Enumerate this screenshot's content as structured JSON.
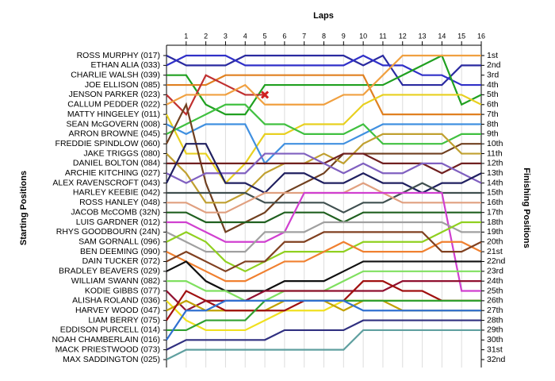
{
  "chart_data": {
    "type": "line",
    "title": "Laps",
    "y_label": "Starting Positions",
    "y2_label": "Finishing Positions",
    "x": [
      0,
      1,
      2,
      3,
      4,
      5,
      6,
      7,
      8,
      9,
      10,
      11,
      12,
      13,
      14,
      15,
      16
    ],
    "xlim": [
      0,
      16
    ],
    "xticks": [
      1,
      2,
      3,
      4,
      5,
      6,
      7,
      8,
      9,
      10,
      11,
      12,
      13,
      14,
      15,
      16
    ],
    "ylim": [
      1,
      32
    ],
    "y_inverted": true,
    "grid": true,
    "y2ticks": [
      {
        "value": 1,
        "label": "1st"
      },
      {
        "value": 2,
        "label": "2nd"
      },
      {
        "value": 3,
        "label": "3rd"
      },
      {
        "value": 4,
        "label": "4th"
      },
      {
        "value": 5,
        "label": "5th"
      },
      {
        "value": 6,
        "label": "6th"
      },
      {
        "value": 7,
        "label": "7th"
      },
      {
        "value": 8,
        "label": "8th"
      },
      {
        "value": 9,
        "label": "9th"
      },
      {
        "value": 10,
        "label": "10th"
      },
      {
        "value": 11,
        "label": "11th"
      },
      {
        "value": 12,
        "label": "12th"
      },
      {
        "value": 13,
        "label": "13th"
      },
      {
        "value": 14,
        "label": "14th"
      },
      {
        "value": 15,
        "label": "15th"
      },
      {
        "value": 16,
        "label": "16th"
      },
      {
        "value": 17,
        "label": "17th"
      },
      {
        "value": 18,
        "label": "18th"
      },
      {
        "value": 19,
        "label": "19th"
      },
      {
        "value": 20,
        "label": "20th"
      },
      {
        "value": 21,
        "label": "21st"
      },
      {
        "value": 22,
        "label": "22nd"
      },
      {
        "value": 23,
        "label": "23rd"
      },
      {
        "value": 24,
        "label": "24th"
      },
      {
        "value": 25,
        "label": "25th"
      },
      {
        "value": 26,
        "label": "26th"
      },
      {
        "value": 27,
        "label": "27th"
      },
      {
        "value": 28,
        "label": "28th"
      },
      {
        "value": 29,
        "label": "29th"
      },
      {
        "value": 30,
        "label": "30th"
      },
      {
        "value": 31,
        "label": "31st"
      },
      {
        "value": 32,
        "label": "32nd"
      }
    ],
    "retired_marker_color": "#d02020",
    "series": [
      {
        "name": "ROSS MURPHY (017)",
        "color": "#2a2aa0",
        "values": [
          1,
          2,
          2,
          2,
          1,
          1,
          1,
          1,
          1,
          1,
          2,
          1,
          4,
          4,
          4,
          2,
          2
        ]
      },
      {
        "name": "ETHAN ALIA (033)",
        "color": "#3030c8",
        "values": [
          2,
          1,
          1,
          1,
          2,
          2,
          2,
          2,
          2,
          2,
          1,
          2,
          2,
          3,
          3,
          4,
          4
        ]
      },
      {
        "name": "CHARLIE WALSH (039)",
        "color": "#20a020",
        "values": [
          3,
          3,
          6,
          7,
          7,
          4,
          4,
          4,
          4,
          4,
          4,
          4,
          3,
          2,
          1,
          6,
          5
        ]
      },
      {
        "name": "JOE ELLISON (085)",
        "color": "#e08020",
        "values": [
          4,
          4,
          4,
          3,
          3,
          3,
          3,
          3,
          3,
          3,
          3,
          7,
          7,
          7,
          7,
          7,
          7
        ]
      },
      {
        "name": "JENSON PARKER (023)",
        "color": "#c03030",
        "values": [
          5,
          7,
          3,
          4,
          5,
          5,
          null,
          null,
          null,
          null,
          null,
          null,
          null,
          null,
          null,
          null,
          null
        ]
      },
      {
        "name": "CALLUM PEDDER (022)",
        "color": "#f0a040",
        "values": [
          6,
          5,
          5,
          5,
          4,
          6,
          6,
          6,
          6,
          5,
          5,
          3,
          1,
          1,
          1,
          1,
          1
        ]
      },
      {
        "name": "MATTY HINGELEY (011)",
        "color": "#e8d020",
        "values": [
          7,
          11,
          11,
          14,
          12,
          9,
          9,
          8,
          8,
          8,
          6,
          5,
          5,
          5,
          5,
          5,
          6
        ]
      },
      {
        "name": "SEAN McGOVERN (008)",
        "color": "#4090e0",
        "values": [
          8,
          9,
          8,
          8,
          8,
          12,
          10,
          10,
          10,
          10,
          9,
          8,
          8,
          8,
          8,
          8,
          8
        ]
      },
      {
        "name": "ARRON BROWNE (045)",
        "color": "#40c040",
        "values": [
          9,
          8,
          7,
          6,
          6,
          8,
          8,
          9,
          9,
          9,
          8,
          10,
          10,
          10,
          10,
          9,
          9
        ]
      },
      {
        "name": "FREDDIE SPINDLOW (060)",
        "color": "#704020",
        "values": [
          10,
          6,
          14,
          19,
          18,
          17,
          15,
          14,
          13,
          11,
          11,
          11,
          11,
          11,
          11,
          10,
          10
        ]
      },
      {
        "name": "JAKE TRIGGS (080)",
        "color": "#c0a030",
        "values": [
          11,
          13,
          16,
          16,
          15,
          13,
          12,
          12,
          11,
          12,
          10,
          9,
          9,
          9,
          9,
          11,
          11
        ]
      },
      {
        "name": "DANIEL BOLTON (084)",
        "color": "#702020",
        "values": [
          12,
          12,
          12,
          12,
          12,
          12,
          12,
          12,
          12,
          11,
          11,
          12,
          12,
          12,
          13,
          12,
          12
        ]
      },
      {
        "name": "ARCHIE KITCHING (027)",
        "color": "#8060c0",
        "values": [
          13,
          14,
          13,
          13,
          13,
          11,
          11,
          11,
          12,
          13,
          12,
          13,
          13,
          12,
          12,
          13,
          14
        ]
      },
      {
        "name": "ALEX RAVENSCROFT (043)",
        "color": "#202060",
        "values": [
          14,
          10,
          10,
          14,
          14,
          15,
          13,
          13,
          14,
          14,
          13,
          14,
          14,
          15,
          14,
          14,
          13
        ]
      },
      {
        "name": "HARLEY KEEBIE (042)",
        "color": "#405050",
        "values": [
          15,
          15,
          15,
          15,
          15,
          16,
          16,
          16,
          16,
          17,
          16,
          16,
          15,
          14,
          15,
          15,
          15
        ]
      },
      {
        "name": "ROSS HANLEY (048)",
        "color": "#e0a080",
        "values": [
          16,
          16,
          17,
          17,
          16,
          15,
          15,
          15,
          15,
          15,
          14,
          15,
          16,
          16,
          16,
          16,
          16
        ]
      },
      {
        "name": "JACOB McCOMB (32N)",
        "color": "#206020",
        "values": [
          17,
          17,
          18,
          18,
          18,
          18,
          17,
          17,
          17,
          18,
          17,
          17,
          17,
          17,
          17,
          17,
          17
        ]
      },
      {
        "name": "LUIS GARDNER (012)",
        "color": "#d040d0",
        "values": [
          18,
          18,
          19,
          20,
          20,
          20,
          19,
          15,
          15,
          15,
          15,
          15,
          15,
          15,
          15,
          25,
          25
        ]
      },
      {
        "name": "RHYS GOODBOURN (24N)",
        "color": "#a0a0a0",
        "values": [
          19,
          20,
          21,
          21,
          21,
          19,
          19,
          19,
          18,
          18,
          18,
          18,
          18,
          18,
          18,
          19,
          19
        ]
      },
      {
        "name": "SAM GORNALL (096)",
        "color": "#90d020",
        "values": [
          20,
          19,
          20,
          22,
          23,
          22,
          21,
          21,
          21,
          21,
          20,
          20,
          20,
          20,
          19,
          18,
          18
        ]
      },
      {
        "name": "BEN DEEMING (090)",
        "color": "#f08030",
        "values": [
          21,
          22,
          23,
          24,
          24,
          23,
          22,
          22,
          21,
          20,
          21,
          21,
          21,
          21,
          20,
          20,
          21
        ]
      },
      {
        "name": "DAIN TUCKER (072)",
        "color": "#804020",
        "values": [
          22,
          21,
          22,
          23,
          22,
          22,
          20,
          20,
          19,
          19,
          19,
          19,
          19,
          19,
          21,
          21,
          20
        ]
      },
      {
        "name": "BRADLEY BEAVERS (029)",
        "color": "#101010",
        "values": [
          23,
          22,
          24,
          25,
          25,
          25,
          24,
          24,
          24,
          23,
          22,
          22,
          22,
          22,
          22,
          22,
          22
        ]
      },
      {
        "name": "WILLIAM SWANN (082)",
        "color": "#80e060",
        "values": [
          24,
          24,
          25,
          25,
          26,
          26,
          25,
          25,
          25,
          24,
          23,
          23,
          23,
          23,
          23,
          23,
          23
        ]
      },
      {
        "name": "KODIE GIBBS (077)",
        "color": "#901030",
        "values": [
          25,
          27,
          26,
          26,
          26,
          25,
          25,
          25,
          25,
          25,
          25,
          25,
          24,
          24,
          24,
          24,
          24
        ]
      },
      {
        "name": "ALISHA ROLAND (036)",
        "color": "#f0e020",
        "values": [
          26,
          28,
          29,
          29,
          29,
          28,
          27,
          27,
          27,
          26,
          26,
          26,
          26,
          26,
          26,
          26,
          26
        ]
      },
      {
        "name": "HARVEY WOOD (047)",
        "color": "#c0a000",
        "values": [
          27,
          26,
          27,
          27,
          27,
          27,
          26,
          26,
          26,
          27,
          26,
          26,
          27,
          27,
          27,
          27,
          27
        ]
      },
      {
        "name": "LIAM BERRY (075)",
        "color": "#a01010",
        "values": [
          28,
          25,
          26,
          27,
          27,
          27,
          27,
          26,
          26,
          26,
          24,
          24,
          25,
          25,
          26,
          26,
          26
        ]
      },
      {
        "name": "EDDISON PURCELL (014)",
        "color": "#30a030",
        "values": [
          29,
          29,
          28,
          28,
          28,
          26,
          26,
          26,
          26,
          26,
          26,
          26,
          26,
          26,
          26,
          26,
          26
        ]
      },
      {
        "name": "NOAH CHAMBERLAIN (016)",
        "color": "#3070d0",
        "values": [
          30,
          27,
          27,
          26,
          26,
          26,
          26,
          26,
          26,
          26,
          27,
          27,
          27,
          27,
          27,
          27,
          27
        ]
      },
      {
        "name": "MACK PRIESTWOOD (073)",
        "color": "#303080",
        "values": [
          31,
          30,
          30,
          30,
          30,
          30,
          29,
          29,
          29,
          29,
          28,
          28,
          28,
          28,
          28,
          28,
          28
        ]
      },
      {
        "name": "MAX SADDINGTON (025)",
        "color": "#60a0a0",
        "values": [
          32,
          31,
          31,
          31,
          31,
          31,
          31,
          31,
          31,
          31,
          29,
          29,
          29,
          29,
          29,
          29,
          29
        ]
      }
    ]
  }
}
